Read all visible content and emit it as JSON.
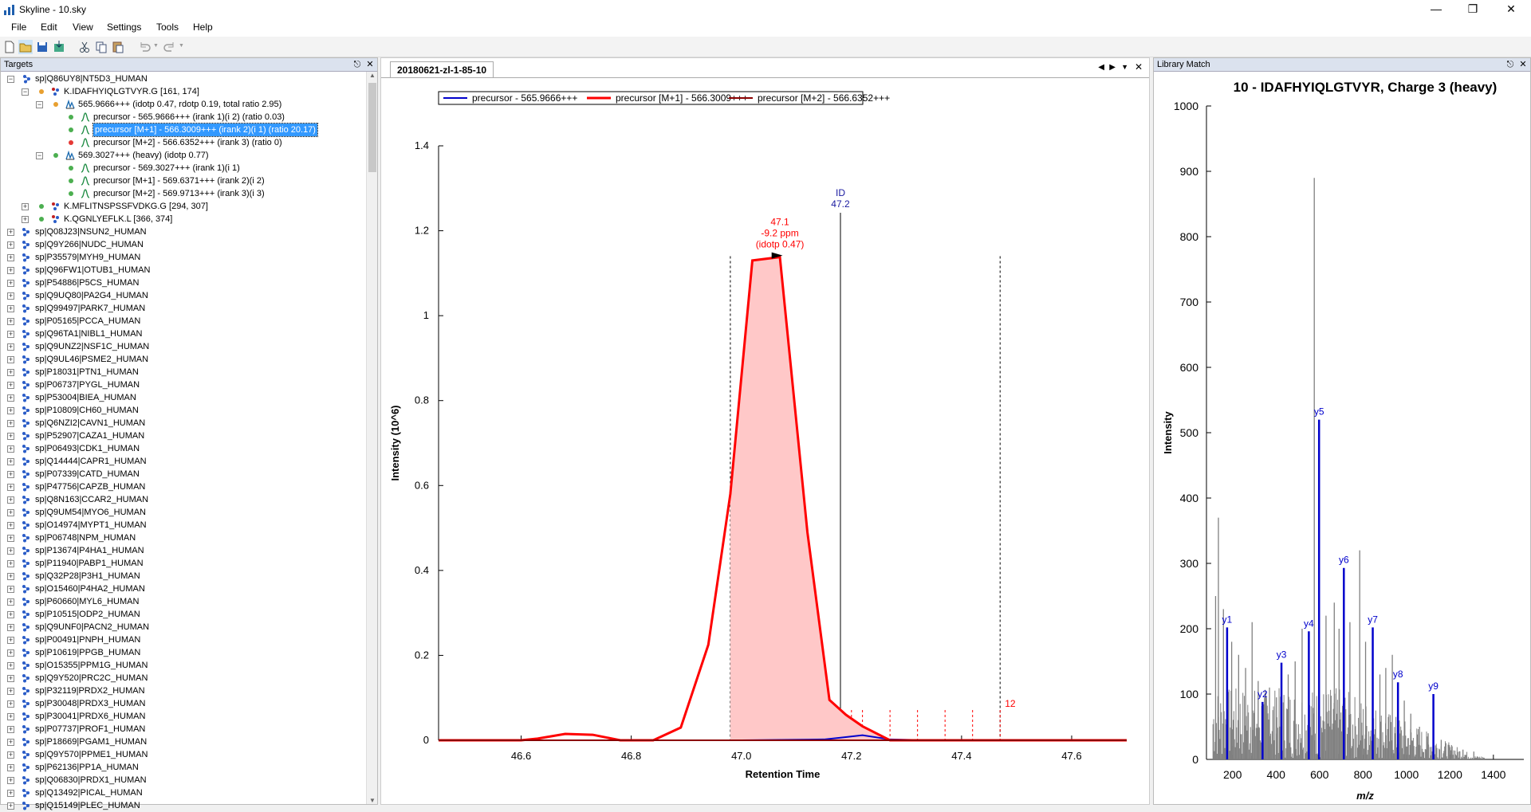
{
  "window": {
    "title": "Skyline - 10.sky"
  },
  "menu": [
    "File",
    "Edit",
    "View",
    "Settings",
    "Tools",
    "Help"
  ],
  "targets": {
    "title": "Targets",
    "expanded": [
      {
        "label": "sp|Q86UY8|NT5D3_HUMAN"
      },
      {
        "label": "K.IDAFHYIQLGTVYR.G [161, 174]"
      },
      {
        "label": "565.9666+++ (idotp 0.47, rdotp 0.19, total ratio 2.95)"
      },
      {
        "label": "precursor - 565.9666+++ (irank 1)(i 2) (ratio 0.03)"
      },
      {
        "label": "precursor [M+1] - 566.3009+++ (irank 2)(i 1) (ratio 20.17)"
      },
      {
        "label": "precursor [M+2] - 566.6352+++ (irank 3) (ratio 0)"
      },
      {
        "label": "569.3027+++ (heavy) (idotp 0.77)"
      },
      {
        "label": "precursor - 569.3027+++ (irank 1)(i 1)"
      },
      {
        "label": "precursor [M+1] - 569.6371+++ (irank 2)(i 2)"
      },
      {
        "label": "precursor [M+2] - 569.9713+++ (irank 3)(i 3)"
      },
      {
        "label": "K.MFLITNSPSSFVDKG.G [294, 307]"
      },
      {
        "label": "K.QGNLYEFLK.L [366, 374]"
      }
    ],
    "proteins": [
      "sp|Q08J23|NSUN2_HUMAN",
      "sp|Q9Y266|NUDC_HUMAN",
      "sp|P35579|MYH9_HUMAN",
      "sp|Q96FW1|OTUB1_HUMAN",
      "sp|P54886|P5CS_HUMAN",
      "sp|Q9UQ80|PA2G4_HUMAN",
      "sp|Q99497|PARK7_HUMAN",
      "sp|P05165|PCCA_HUMAN",
      "sp|Q96TA1|NIBL1_HUMAN",
      "sp|Q9UNZ2|NSF1C_HUMAN",
      "sp|Q9UL46|PSME2_HUMAN",
      "sp|P18031|PTN1_HUMAN",
      "sp|P06737|PYGL_HUMAN",
      "sp|P53004|BIEA_HUMAN",
      "sp|P10809|CH60_HUMAN",
      "sp|Q6NZI2|CAVN1_HUMAN",
      "sp|P52907|CAZA1_HUMAN",
      "sp|P06493|CDK1_HUMAN",
      "sp|Q14444|CAPR1_HUMAN",
      "sp|P07339|CATD_HUMAN",
      "sp|P47756|CAPZB_HUMAN",
      "sp|Q8N163|CCAR2_HUMAN",
      "sp|Q9UM54|MYO6_HUMAN",
      "sp|O14974|MYPT1_HUMAN",
      "sp|P06748|NPM_HUMAN",
      "sp|P13674|P4HA1_HUMAN",
      "sp|P11940|PABP1_HUMAN",
      "sp|Q32P28|P3H1_HUMAN",
      "sp|O15460|P4HA2_HUMAN",
      "sp|P60660|MYL6_HUMAN",
      "sp|P10515|ODP2_HUMAN",
      "sp|Q9UNF0|PACN2_HUMAN",
      "sp|P00491|PNPH_HUMAN",
      "sp|P10619|PPGB_HUMAN",
      "sp|O15355|PPM1G_HUMAN",
      "sp|Q9Y520|PRC2C_HUMAN",
      "sp|P32119|PRDX2_HUMAN",
      "sp|P30048|PRDX3_HUMAN",
      "sp|P30041|PRDX6_HUMAN",
      "sp|P07737|PROF1_HUMAN",
      "sp|P18669|PGAM1_HUMAN",
      "sp|Q9Y570|PPME1_HUMAN",
      "sp|P62136|PP1A_HUMAN",
      "sp|Q06830|PRDX1_HUMAN",
      "sp|Q13492|PICAL_HUMAN",
      "sp|Q15149|PLEC_HUMAN"
    ]
  },
  "chromatogram": {
    "tab": "20180621-zl-1-85-10",
    "legend": [
      "precursor - 565.9666+++",
      "precursor [M+1] - 566.3009+++",
      "precursor [M+2] - 566.6352+++"
    ],
    "xlabel": "Retention Time",
    "ylabel": "Intensity (10^6)",
    "peak_label": [
      "47.1",
      "-9.2 ppm",
      "(idotp 0.47)"
    ],
    "id_label": [
      "ID",
      "47.2"
    ],
    "count_label": "12",
    "colors": {
      "precursor": "#0000cc",
      "m1": "#ff0000",
      "m2": "#8b0000"
    }
  },
  "chart_data": [
    {
      "type": "line",
      "title": "",
      "xlabel": "Retention Time",
      "ylabel": "Intensity (10^6)",
      "xlim": [
        46.45,
        47.7
      ],
      "ylim": [
        0,
        1.4
      ],
      "xticks": [
        "46.6",
        "46.8",
        "47.0",
        "47.2",
        "47.4",
        "47.6"
      ],
      "yticks": [
        "0",
        "0.2",
        "0.4",
        "0.6",
        "0.8",
        "1",
        "1.2",
        "1.4"
      ],
      "series": [
        {
          "name": "precursor - 565.9666+++",
          "color": "#0000cc",
          "x": [
            46.45,
            46.6,
            46.8,
            47.0,
            47.15,
            47.18,
            47.22,
            47.27,
            47.35,
            47.7
          ],
          "y": [
            0.0,
            0.0,
            0.0,
            0.0,
            0.002,
            0.006,
            0.012,
            0.002,
            0.0,
            0.0
          ]
        },
        {
          "name": "precursor [M+1] - 566.3009+++",
          "color": "#ff0000",
          "x": [
            46.45,
            46.6,
            46.63,
            46.68,
            46.73,
            46.78,
            46.84,
            46.89,
            46.94,
            46.98,
            47.02,
            47.07,
            47.12,
            47.16,
            47.19,
            47.22,
            47.27,
            47.7
          ],
          "y": [
            0.0,
            0.0,
            0.004,
            0.015,
            0.013,
            0.0,
            0.0,
            0.03,
            0.225,
            0.58,
            1.13,
            1.138,
            0.49,
            0.095,
            0.06,
            0.033,
            0.0,
            0.0
          ]
        },
        {
          "name": "precursor [M+2] - 566.6352+++",
          "color": "#8b0000",
          "x": [
            46.45,
            47.7
          ],
          "y": [
            0.0,
            0.0
          ]
        }
      ],
      "integration_boundaries": [
        46.98,
        47.47
      ],
      "id_line": 47.18
    },
    {
      "type": "bar",
      "title": "10 - IDAFHYIQLGTVYR, Charge 3 (heavy)",
      "xlabel": "m/z",
      "ylabel": "Intensity",
      "xlim": [
        80,
        1540
      ],
      "ylim": [
        0,
        1000
      ],
      "xticks": [
        "200",
        "400",
        "600",
        "800",
        "1000",
        "1200",
        "1400"
      ],
      "yticks": [
        "0",
        "100",
        "200",
        "300",
        "400",
        "500",
        "600",
        "700",
        "800",
        "900",
        "1000"
      ],
      "labeled_peaks": [
        {
          "label": "y1",
          "mz": 175,
          "intensity": 202
        },
        {
          "label": "y2",
          "mz": 338,
          "intensity": 88
        },
        {
          "label": "y3",
          "mz": 425,
          "intensity": 148
        },
        {
          "label": "y4",
          "mz": 551,
          "intensity": 196
        },
        {
          "label": "y5",
          "mz": 598,
          "intensity": 520
        },
        {
          "label": "y6",
          "mz": 712,
          "intensity": 293
        },
        {
          "label": "y7",
          "mz": 845,
          "intensity": 202
        },
        {
          "label": "y8",
          "mz": 961,
          "intensity": 118
        },
        {
          "label": "y9",
          "mz": 1124,
          "intensity": 100
        }
      ],
      "unlabeled_peaks": [
        {
          "mz": 122,
          "intensity": 250
        },
        {
          "mz": 135,
          "intensity": 370
        },
        {
          "mz": 158,
          "intensity": 230
        },
        {
          "mz": 196,
          "intensity": 180
        },
        {
          "mz": 228,
          "intensity": 160
        },
        {
          "mz": 260,
          "intensity": 140
        },
        {
          "mz": 290,
          "intensity": 210
        },
        {
          "mz": 318,
          "intensity": 120
        },
        {
          "mz": 370,
          "intensity": 110
        },
        {
          "mz": 402,
          "intensity": 95
        },
        {
          "mz": 456,
          "intensity": 130
        },
        {
          "mz": 488,
          "intensity": 150
        },
        {
          "mz": 520,
          "intensity": 200
        },
        {
          "mz": 576,
          "intensity": 890
        },
        {
          "mz": 630,
          "intensity": 220
        },
        {
          "mz": 668,
          "intensity": 240
        },
        {
          "mz": 690,
          "intensity": 200
        },
        {
          "mz": 740,
          "intensity": 210
        },
        {
          "mz": 785,
          "intensity": 320
        },
        {
          "mz": 812,
          "intensity": 180
        },
        {
          "mz": 878,
          "intensity": 130
        },
        {
          "mz": 905,
          "intensity": 140
        },
        {
          "mz": 935,
          "intensity": 160
        },
        {
          "mz": 990,
          "intensity": 90
        },
        {
          "mz": 1020,
          "intensity": 70
        },
        {
          "mz": 1060,
          "intensity": 50
        },
        {
          "mz": 1100,
          "intensity": 40
        },
        {
          "mz": 1160,
          "intensity": 30
        },
        {
          "mz": 1210,
          "intensity": 20
        },
        {
          "mz": 1260,
          "intensity": 15
        },
        {
          "mz": 1310,
          "intensity": 12
        }
      ]
    }
  ],
  "library": {
    "title": "Library Match",
    "spectrum_title": "10 - IDAFHYIQLGTVYR, Charge 3 (heavy)",
    "xlabel": "m/z",
    "ylabel": "Intensity"
  }
}
